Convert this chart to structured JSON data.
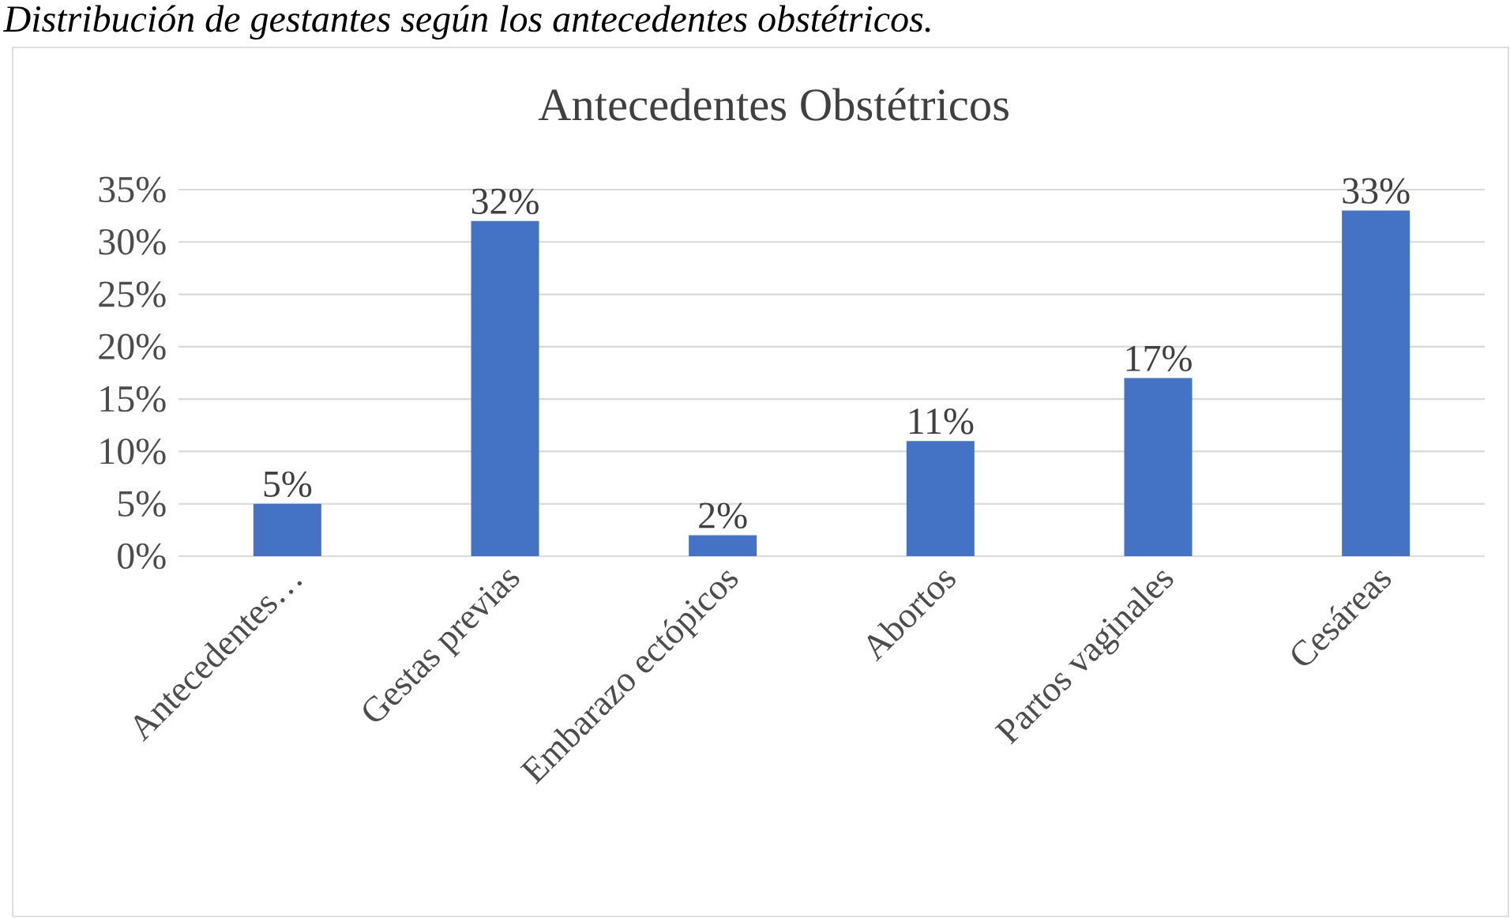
{
  "chart_data": {
    "type": "bar",
    "title": "Antecedentes Obstétricos",
    "annotations": [
      "Distribución de gestantes según los antecedentes obstétricos."
    ],
    "categories": [
      "Antecedentes…",
      "Gestas previas",
      "Embarazo ectópicos",
      "Abortos",
      "Partos vaginales",
      "Cesáreas"
    ],
    "values": [
      5,
      32,
      2,
      11,
      17,
      33
    ],
    "value_labels": [
      "5%",
      "32%",
      "2%",
      "11%",
      "17%",
      "33%"
    ],
    "color": "#4472c4",
    "ylim": [
      0,
      35
    ],
    "yticks": [
      {
        "value": 0,
        "label": "0%"
      },
      {
        "value": 5,
        "label": "5%"
      },
      {
        "value": 10,
        "label": "10%"
      },
      {
        "value": 15,
        "label": "15%"
      },
      {
        "value": 20,
        "label": "20%"
      },
      {
        "value": 25,
        "label": "25%"
      },
      {
        "value": 30,
        "label": "30%"
      },
      {
        "value": 35,
        "label": "35%"
      }
    ],
    "grid": "y"
  }
}
